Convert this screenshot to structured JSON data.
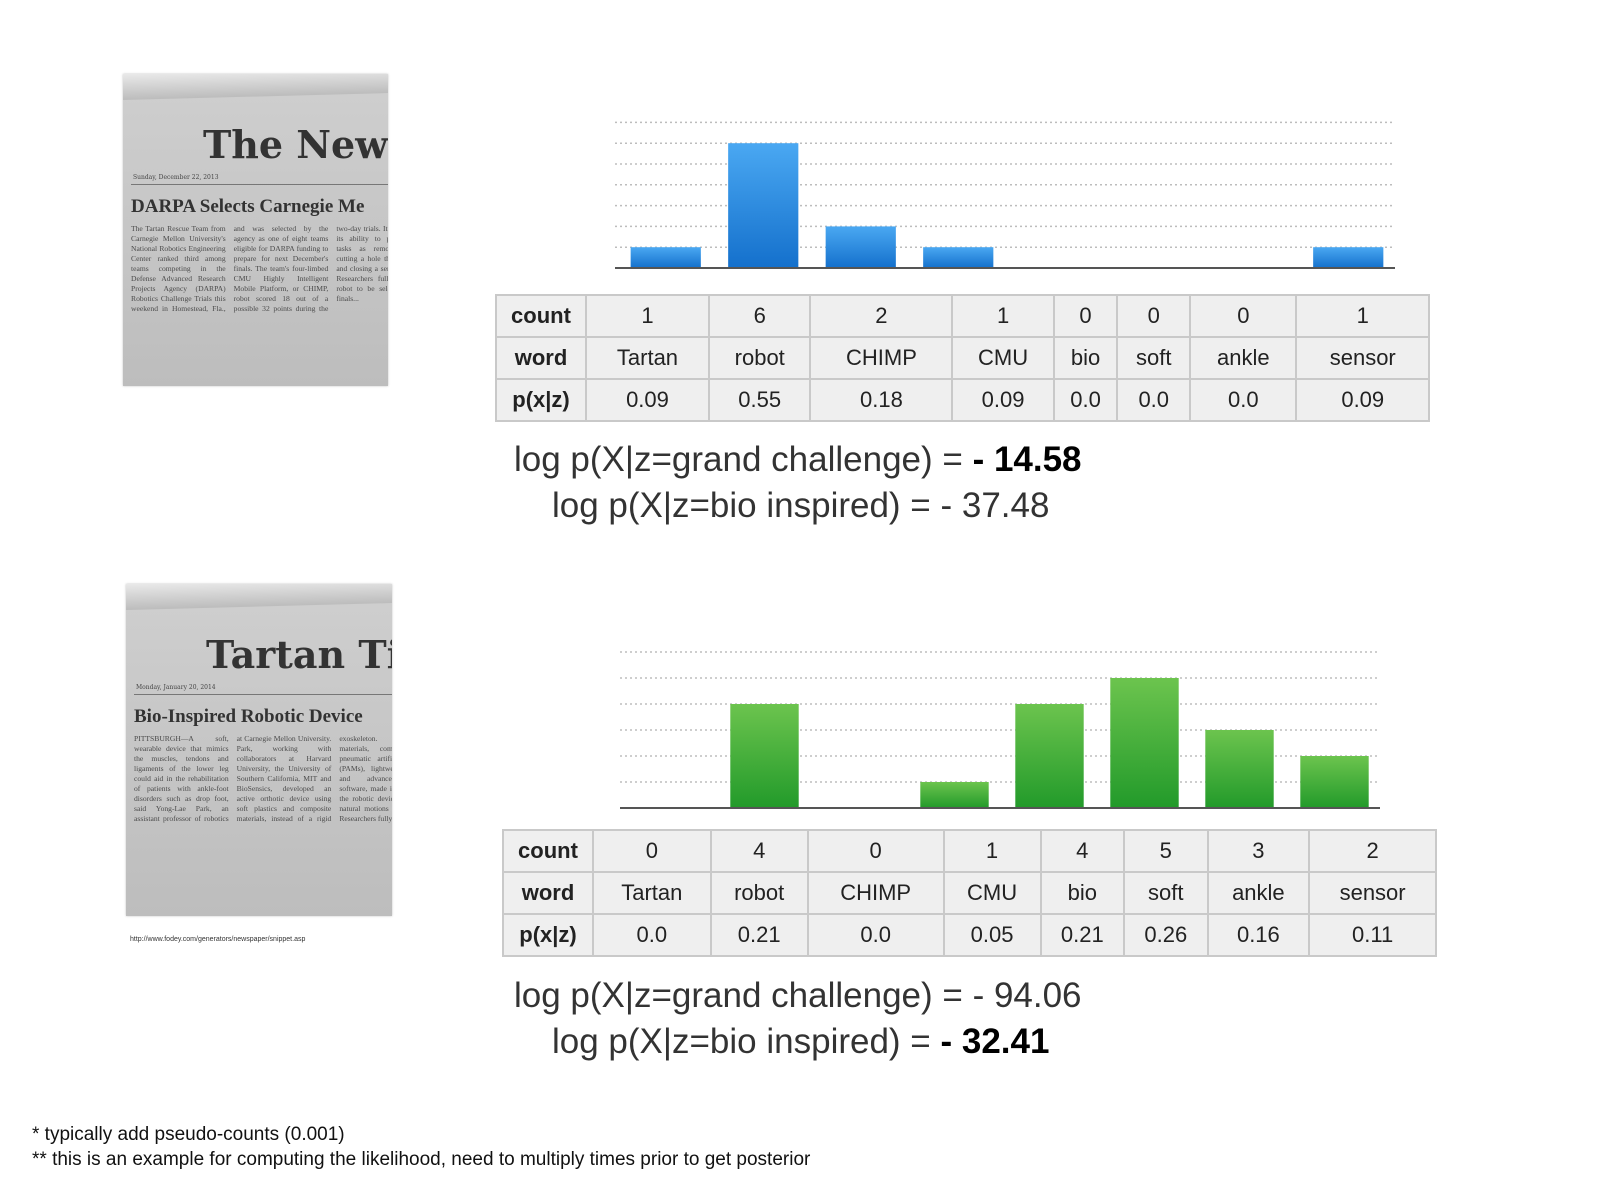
{
  "docs": [
    {
      "masthead": "The Newspa",
      "date": "Sunday, December 22, 2013",
      "headline": "DARPA Selects Carnegie Me",
      "body": "The Tartan Rescue Team from Carnegie Mellon University's National Robotics Engineering Center ranked third among teams competing in the Defense Advanced Research Projects Agency (DARPA) Robotics Challenge Trials this weekend in Homestead, Fla., and was selected by the agency as one of eight teams eligible for DARPA funding to prepare for next December's finals. The team's four-limbed CMU Highly Intelligent Mobile Platform, or CHIMP, robot scored 18 out of a possible 32 points during the two-day trials. It demonstrated its ability to perform such tasks as removing debris, cutting a hole through a wall and closing a series of valves. Researchers fully expect the robot to be selected for the finals..."
    },
    {
      "masthead": "Tartan Tim",
      "date": "Monday, January 20, 2014",
      "headline": "Bio-Inspired Robotic Device",
      "body": "PITTSBURGH—A soft, wearable device that mimics the muscles, tendons and ligaments of the lower leg could aid in the rehabilitation of patients with ankle-foot disorders such as drop foot, said Yong-Lae Park, an assistant professor of robotics at Carnegie Mellon University. Park, working with collaborators at Harvard University, the University of Southern California, MIT and BioSensics, developed an active orthotic device using soft plastics and composite materials, instead of a rigid exoskeleton. The soft materials, combined with pneumatic artificial muscles (PAMs), lightweight sensors and advanced control software, made it possible for the robotic device to achieve natural motions in the ankle. Researchers fully expect...",
      "url": "http://www.fodey.com/generators/newspaper/snippet.asp"
    }
  ],
  "row_headers": [
    "count",
    "word",
    "p(x|z)"
  ],
  "chart_data": [
    {
      "type": "bar",
      "categories": [
        "Tartan",
        "robot",
        "CHIMP",
        "CMU",
        "bio",
        "soft",
        "ankle",
        "sensor"
      ],
      "values": [
        1,
        6,
        2,
        1,
        0,
        0,
        0,
        1
      ],
      "counts": [
        "1",
        "6",
        "2",
        "1",
        "0",
        "0",
        "0",
        "1"
      ],
      "probabilities": [
        "0.09",
        "0.55",
        "0.18",
        "0.09",
        "0.0",
        "0.0",
        "0.0",
        "0.09"
      ],
      "ylim": [
        0,
        7.5
      ],
      "grid": true,
      "color_top": "#4aa8f2",
      "color_bottom": "#1470cc"
    },
    {
      "type": "bar",
      "categories": [
        "Tartan",
        "robot",
        "CHIMP",
        "CMU",
        "bio",
        "soft",
        "ankle",
        "sensor"
      ],
      "values": [
        0,
        4,
        0,
        1,
        4,
        5,
        3,
        2
      ],
      "counts": [
        "0",
        "4",
        "0",
        "1",
        "4",
        "5",
        "3",
        "2"
      ],
      "probabilities": [
        "0.0",
        "0.21",
        "0.0",
        "0.05",
        "0.21",
        "0.26",
        "0.16",
        "0.11"
      ],
      "ylim": [
        0,
        6
      ],
      "grid": true,
      "color_top": "#6cc44e",
      "color_bottom": "#229a2a"
    }
  ],
  "loglik": [
    {
      "grand_prefix": "log p(X|z=grand challenge) = ",
      "grand_value": "- 14.58",
      "bio_prefix": "log p(X|z=bio inspired) = ",
      "bio_value": "- 37.48"
    },
    {
      "grand_prefix": "log p(X|z=grand challenge) = ",
      "grand_value": "- 94.06",
      "bio_prefix": "log p(X|z=bio inspired) = ",
      "bio_value": "- 32.41"
    }
  ],
  "footnotes": [
    "* typically add pseudo-counts (0.001)",
    "** this is an example for computing the likelihood, need to multiply times prior to get posterior"
  ]
}
